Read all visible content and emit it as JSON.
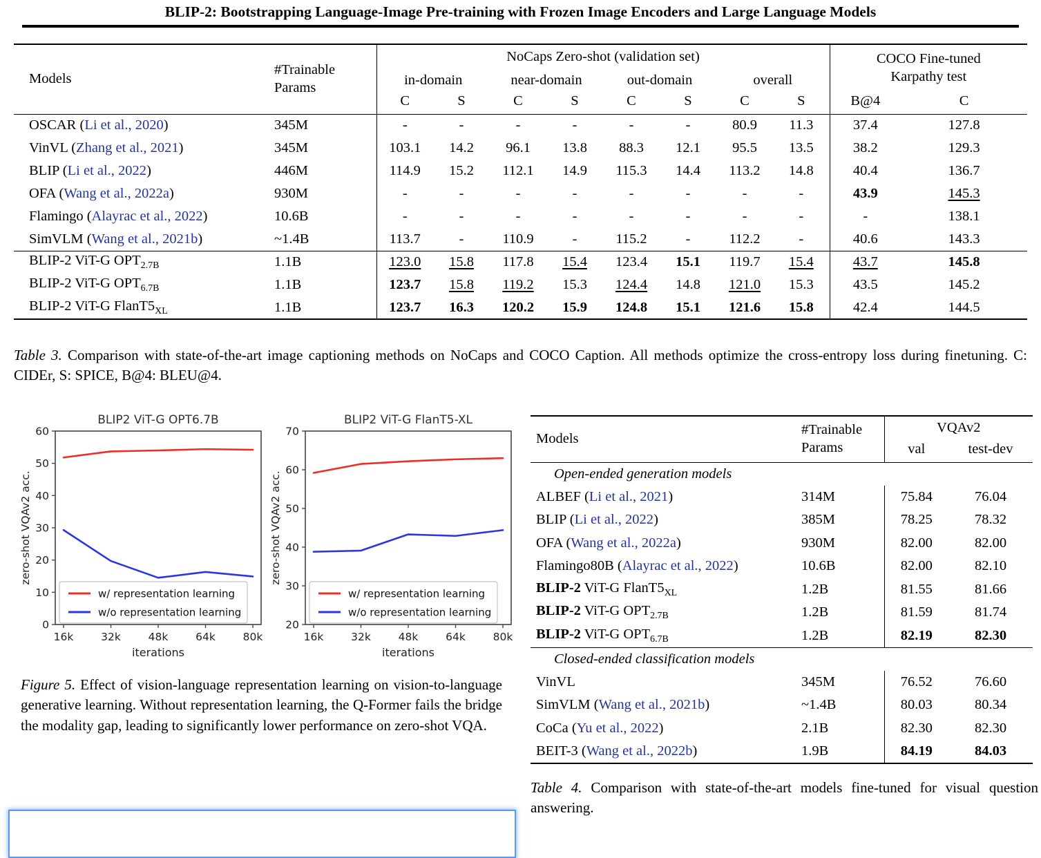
{
  "colors": {
    "citation_blue": "#23359d",
    "line_red": "#ee2e24",
    "line_blue": "#2a35e8"
  },
  "title": "BLIP-2: Bootstrapping Language-Image Pre-training with Frozen Image Encoders and Large Language Models",
  "table3": {
    "header": {
      "models": "Models",
      "params_line1": "#Trainable",
      "params_line2": "Params",
      "nocaps_group": "NoCaps Zero-shot (validation set)",
      "coco_line1": "COCO Fine-tuned",
      "coco_line2": "Karpathy test",
      "domains": [
        "in-domain",
        "near-domain",
        "out-domain",
        "overall"
      ],
      "metrics": [
        "C",
        "S",
        "C",
        "S",
        "C",
        "S",
        "C",
        "S"
      ],
      "coco_metrics": [
        "B@4",
        "C"
      ]
    },
    "rows": [
      {
        "parts": [
          {
            "t": "OSCAR ("
          },
          {
            "t": "Li et al., 2020",
            "c": "cite"
          },
          {
            "t": ")"
          }
        ],
        "params": "345M",
        "vals": [
          "-",
          "-",
          "-",
          "-",
          "-",
          "-",
          "80.9",
          "11.3",
          "37.4",
          "127.8"
        ]
      },
      {
        "parts": [
          {
            "t": "VinVL ("
          },
          {
            "t": "Zhang et al., 2021",
            "c": "cite"
          },
          {
            "t": ")"
          }
        ],
        "params": "345M",
        "vals": [
          "103.1",
          "14.2",
          "96.1",
          "13.8",
          "88.3",
          "12.1",
          "95.5",
          "13.5",
          "38.2",
          "129.3"
        ]
      },
      {
        "parts": [
          {
            "t": "BLIP ("
          },
          {
            "t": "Li et al., 2022",
            "c": "cite"
          },
          {
            "t": ")"
          }
        ],
        "params": "446M",
        "vals": [
          "114.9",
          "15.2",
          "112.1",
          "14.9",
          "115.3",
          "14.4",
          "113.2",
          "14.8",
          "40.4",
          "136.7"
        ]
      },
      {
        "parts": [
          {
            "t": "OFA ("
          },
          {
            "t": "Wang et al., 2022a",
            "c": "cite"
          },
          {
            "t": ")"
          }
        ],
        "params": "930M",
        "vals": [
          "-",
          "-",
          "-",
          "-",
          "-",
          "-",
          "-",
          "-",
          {
            "t": "43.9",
            "c": "b"
          },
          {
            "t": "145.3",
            "c": "u"
          }
        ]
      },
      {
        "parts": [
          {
            "t": "Flamingo ("
          },
          {
            "t": "Alayrac et al., 2022",
            "c": "cite"
          },
          {
            "t": ")"
          }
        ],
        "params": "10.6B",
        "vals": [
          "-",
          "-",
          "-",
          "-",
          "-",
          "-",
          "-",
          "-",
          "-",
          "138.1"
        ]
      },
      {
        "parts": [
          {
            "t": "SimVLM ("
          },
          {
            "t": "Wang et al., 2021b",
            "c": "cite"
          },
          {
            "t": ")"
          }
        ],
        "params": "~1.4B",
        "vals": [
          "113.7",
          "-",
          "110.9",
          "-",
          "115.2",
          "-",
          "112.2",
          "-",
          "40.6",
          "143.3"
        ]
      }
    ],
    "blip2_rows": [
      {
        "parts": [
          {
            "t": "BLIP-2 ViT-G OPT"
          },
          {
            "t": "2.7B",
            "c": "sub"
          }
        ],
        "params": "1.1B",
        "vals": [
          {
            "t": "123.0",
            "c": "u"
          },
          {
            "t": "15.8",
            "c": "u"
          },
          "117.8",
          {
            "t": "15.4",
            "c": "u"
          },
          "123.4",
          {
            "t": "15.1",
            "c": "b"
          },
          "119.7",
          {
            "t": "15.4",
            "c": "u"
          },
          {
            "t": "43.7",
            "c": "u"
          },
          {
            "t": "145.8",
            "c": "b"
          }
        ]
      },
      {
        "parts": [
          {
            "t": "BLIP-2 ViT-G OPT"
          },
          {
            "t": "6.7B",
            "c": "sub"
          }
        ],
        "params": "1.1B",
        "vals": [
          {
            "t": "123.7",
            "c": "b"
          },
          {
            "t": "15.8",
            "c": "u"
          },
          {
            "t": "119.2",
            "c": "u"
          },
          "15.3",
          {
            "t": "124.4",
            "c": "u"
          },
          "14.8",
          {
            "t": "121.0",
            "c": "u"
          },
          "15.3",
          "43.5",
          "145.2"
        ]
      },
      {
        "parts": [
          {
            "t": "BLIP-2 ViT-G FlanT5"
          },
          {
            "t": "XL",
            "c": "sub"
          }
        ],
        "params": "1.1B",
        "vals": [
          {
            "t": "123.7",
            "c": "b"
          },
          {
            "t": "16.3",
            "c": "b"
          },
          {
            "t": "120.2",
            "c": "b"
          },
          {
            "t": "15.9",
            "c": "b"
          },
          {
            "t": "124.8",
            "c": "b"
          },
          {
            "t": "15.1",
            "c": "b"
          },
          {
            "t": "121.6",
            "c": "b"
          },
          {
            "t": "15.8",
            "c": "b"
          },
          "42.4",
          "144.5"
        ]
      }
    ],
    "caption": {
      "label": "Table 3.",
      "text": "Comparison with state-of-the-art image captioning methods on NoCaps and COCO Caption. All methods optimize the cross-entropy loss during finetuning. C: CIDEr, S: SPICE, B@4: BLEU@4."
    }
  },
  "chart_data": [
    {
      "type": "line",
      "title": "BLIP2 ViT-G OPT6.7B",
      "xlabel": "iterations",
      "ylabel": "zero-shot VQAv2 acc.",
      "x_labels": [
        "16k",
        "32k",
        "48k",
        "64k",
        "80k"
      ],
      "ylim": [
        0,
        60
      ],
      "yticks": [
        0,
        10,
        20,
        30,
        40,
        50,
        60
      ],
      "grid": false,
      "legend_position": "lower left",
      "series": [
        {
          "name": "w/ representation learning",
          "color": "#ee2e24",
          "values": [
            51.8,
            53.7,
            54.0,
            54.4,
            54.2
          ]
        },
        {
          "name": "w/o representation learning",
          "color": "#2a35e8",
          "values": [
            29.3,
            19.7,
            14.5,
            16.3,
            14.9
          ]
        }
      ]
    },
    {
      "type": "line",
      "title": "BLIP2 ViT-G FlanT5-XL",
      "xlabel": "iterations",
      "ylabel": "zero-shot VQAv2 acc.",
      "x_labels": [
        "16k",
        "32k",
        "48k",
        "64k",
        "80k"
      ],
      "ylim": [
        20,
        70
      ],
      "yticks": [
        20,
        30,
        40,
        50,
        60,
        70
      ],
      "grid": false,
      "legend_position": "lower left",
      "series": [
        {
          "name": "w/ representation learning",
          "color": "#ee2e24",
          "values": [
            59.2,
            61.5,
            62.2,
            62.7,
            63.0
          ]
        },
        {
          "name": "w/o representation learning",
          "color": "#2a35e8",
          "values": [
            38.8,
            39.1,
            43.3,
            42.9,
            44.4
          ]
        }
      ]
    }
  ],
  "figure5": {
    "caption": {
      "label": "Figure 5.",
      "text": "Effect of vision-language representation learning on vision-to-language generative learning.  Without representation learning, the Q-Former fails the bridge the modality gap, leading to significantly lower performance on zero-shot VQA."
    }
  },
  "table4": {
    "header": {
      "models": "Models",
      "params_line1": "#Trainable",
      "params_line2": "Params",
      "group": "VQAv2",
      "val": "val",
      "testdev": "test-dev"
    },
    "sections": [
      {
        "label": "Open-ended generation models",
        "rows": [
          {
            "parts": [
              {
                "t": "ALBEF ("
              },
              {
                "t": "Li et al., 2021",
                "c": "cite"
              },
              {
                "t": ")"
              }
            ],
            "params": "314M",
            "val": "75.84",
            "test": "76.04"
          },
          {
            "parts": [
              {
                "t": "BLIP ("
              },
              {
                "t": "Li et al., 2022",
                "c": "cite"
              },
              {
                "t": ")"
              }
            ],
            "params": "385M",
            "val": "78.25",
            "test": "78.32"
          },
          {
            "parts": [
              {
                "t": "OFA ("
              },
              {
                "t": "Wang et al., 2022a",
                "c": "cite"
              },
              {
                "t": ")"
              }
            ],
            "params": "930M",
            "val": "82.00",
            "test": "82.00"
          },
          {
            "parts": [
              {
                "t": "Flamingo80B ("
              },
              {
                "t": "Alayrac et al., 2022",
                "c": "cite"
              },
              {
                "t": ")"
              }
            ],
            "params": "10.6B",
            "val": "82.00",
            "test": "82.10"
          },
          {
            "parts": [
              {
                "t": "BLIP-2",
                "c": "b"
              },
              {
                "t": " ViT-G FlanT5"
              },
              {
                "t": "XL",
                "c": "sub"
              }
            ],
            "params": "1.2B",
            "val": "81.55",
            "test": "81.66"
          },
          {
            "parts": [
              {
                "t": "BLIP-2",
                "c": "b"
              },
              {
                "t": " ViT-G OPT"
              },
              {
                "t": "2.7B",
                "c": "sub"
              }
            ],
            "params": "1.2B",
            "val": "81.59",
            "test": "81.74"
          },
          {
            "parts": [
              {
                "t": "BLIP-2",
                "c": "b"
              },
              {
                "t": " ViT-G OPT"
              },
              {
                "t": "6.7B",
                "c": "sub"
              }
            ],
            "params": "1.2B",
            "val": {
              "t": "82.19",
              "c": "b"
            },
            "test": {
              "t": "82.30",
              "c": "b"
            }
          }
        ]
      },
      {
        "label": "Closed-ended classification models",
        "rows": [
          {
            "parts": [
              {
                "t": "VinVL"
              }
            ],
            "params": "345M",
            "val": "76.52",
            "test": "76.60"
          },
          {
            "parts": [
              {
                "t": "SimVLM ("
              },
              {
                "t": "Wang et al., 2021b",
                "c": "cite"
              },
              {
                "t": ")"
              }
            ],
            "params": "~1.4B",
            "val": "80.03",
            "test": "80.34"
          },
          {
            "parts": [
              {
                "t": "CoCa ("
              },
              {
                "t": "Yu et al., 2022",
                "c": "cite"
              },
              {
                "t": ")"
              }
            ],
            "params": "2.1B",
            "val": "82.30",
            "test": "82.30"
          },
          {
            "parts": [
              {
                "t": "BEIT-3 ("
              },
              {
                "t": "Wang et al., 2022b",
                "c": "cite"
              },
              {
                "t": ")"
              }
            ],
            "params": "1.9B",
            "val": {
              "t": "84.19",
              "c": "b"
            },
            "test": {
              "t": "84.03",
              "c": "b"
            }
          }
        ]
      }
    ],
    "caption": {
      "label": "Table 4.",
      "text": "Comparison with state-of-the-art models fine-tuned for visual question answering."
    }
  }
}
